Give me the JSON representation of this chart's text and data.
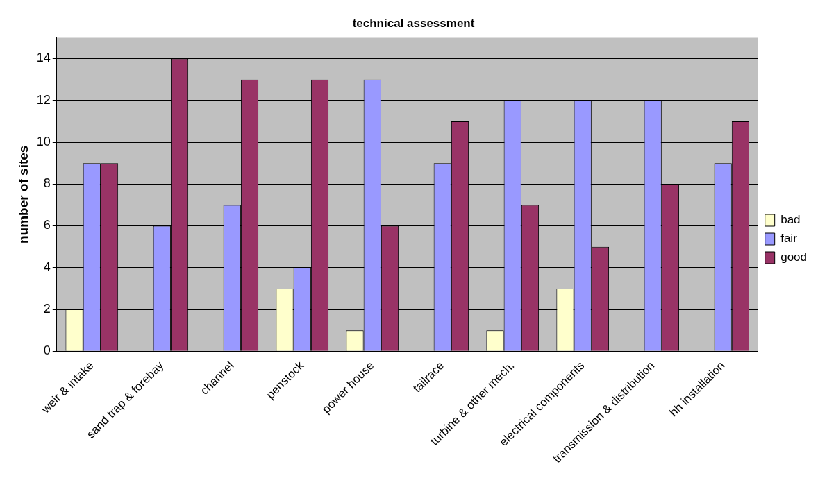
{
  "chart_data": {
    "type": "bar",
    "title": "technical assessment",
    "ylabel": "number of sites",
    "categories": [
      "weir & intake",
      "sand trap & forebay",
      "channel",
      "penstock",
      "power house",
      "tailrace",
      "turbine & other mech.",
      "electrical components",
      "transmission & distribution",
      "hh installation"
    ],
    "series": [
      {
        "name": "bad",
        "color": "#ffffcc",
        "values": [
          2,
          0,
          0,
          3,
          1,
          0,
          1,
          3,
          0,
          0
        ]
      },
      {
        "name": "fair",
        "color": "#9999ff",
        "values": [
          9,
          6,
          7,
          4,
          13,
          9,
          12,
          12,
          12,
          9
        ]
      },
      {
        "name": "good",
        "color": "#993366",
        "values": [
          9,
          14,
          13,
          13,
          6,
          11,
          7,
          5,
          8,
          11
        ]
      }
    ],
    "ylim": [
      0,
      15
    ],
    "yticks": [
      0,
      2,
      4,
      6,
      8,
      10,
      12,
      14
    ],
    "grid": "y",
    "legend": "right"
  }
}
